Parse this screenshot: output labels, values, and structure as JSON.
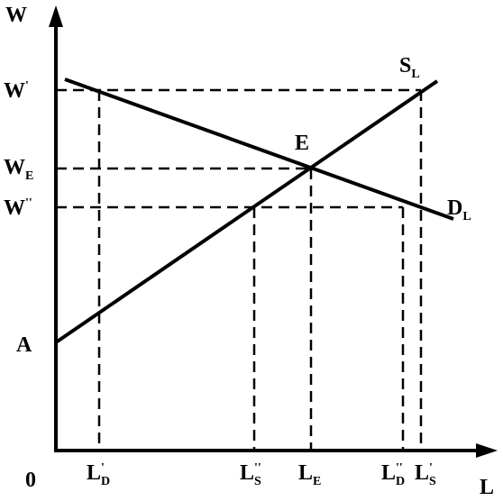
{
  "axes": {
    "y_label": "W",
    "x_label": "L",
    "origin": "0"
  },
  "y_labels": [
    {
      "main": "W",
      "sup": "'"
    },
    {
      "main": "W",
      "sub": "E"
    },
    {
      "main": "W",
      "sup": "''"
    }
  ],
  "point_labels": {
    "a": "A",
    "e": "E"
  },
  "curves": [
    {
      "main": "S",
      "sub": "L"
    },
    {
      "main": "D",
      "sub": "L"
    }
  ],
  "x_labels": [
    {
      "main": "L",
      "sup": "'",
      "sub": "D"
    },
    {
      "main": "L",
      "sup": "''",
      "sub": "S"
    },
    {
      "main": "L",
      "sub": "E"
    },
    {
      "main": "L",
      "sup": "''",
      "sub": "D"
    },
    {
      "main": "L",
      "sup": "'",
      "sub": "S"
    }
  ]
}
